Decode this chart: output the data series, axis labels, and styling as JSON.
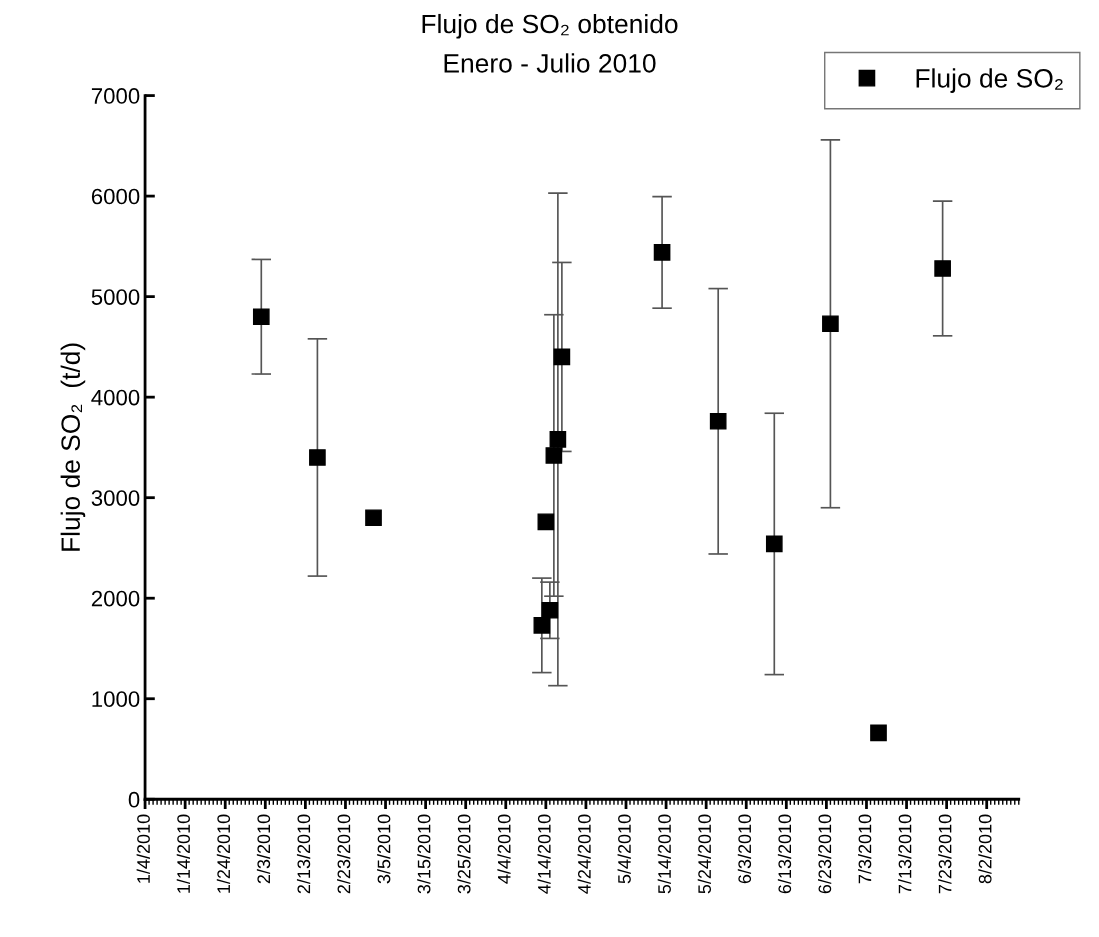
{
  "chart_data": {
    "type": "scatter",
    "title": "Flujo de SO₂ obtenido",
    "subtitle": "Enero - Julio 2010",
    "ylabel": "Flujo de SO₂  (t/d)",
    "x": [
      "2010-02-02",
      "2010-02-16",
      "2010-03-02",
      "2010-04-13",
      "2010-04-14",
      "2010-04-15",
      "2010-04-16",
      "2010-04-17",
      "2010-04-18",
      "2010-05-13",
      "2010-05-27",
      "2010-06-10",
      "2010-06-24",
      "2010-07-06",
      "2010-07-22"
    ],
    "series": [
      {
        "name": "Flujo de SO₂",
        "color": "#000000",
        "values": [
          4800,
          3400,
          2800,
          1730,
          2760,
          1880,
          3420,
          3580,
          4400,
          5440,
          3760,
          2540,
          4730,
          660,
          5280
        ],
        "errors": [
          570,
          1180,
          null,
          470,
          null,
          280,
          1400,
          2450,
          940,
          555,
          1320,
          1300,
          1830,
          null,
          670
        ]
      }
    ],
    "marker": "square",
    "legend": "top right",
    "grid": false,
    "xlim": [
      "2010-01-04",
      "2010-08-10"
    ],
    "xticks": [
      {
        "value": "2010-01-04",
        "label": "1/4/2010"
      },
      {
        "value": "2010-01-14",
        "label": "1/14/2010"
      },
      {
        "value": "2010-01-24",
        "label": "1/24/2010"
      },
      {
        "value": "2010-02-03",
        "label": "2/3/2010"
      },
      {
        "value": "2010-02-13",
        "label": "2/13/2010"
      },
      {
        "value": "2010-02-23",
        "label": "2/23/2010"
      },
      {
        "value": "2010-03-05",
        "label": "3/5/2010"
      },
      {
        "value": "2010-03-15",
        "label": "3/15/2010"
      },
      {
        "value": "2010-03-25",
        "label": "3/25/2010"
      },
      {
        "value": "2010-04-04",
        "label": "4/4/2010"
      },
      {
        "value": "2010-04-14",
        "label": "4/14/2010"
      },
      {
        "value": "2010-04-24",
        "label": "4/24/2010"
      },
      {
        "value": "2010-05-04",
        "label": "5/4/2010"
      },
      {
        "value": "2010-05-14",
        "label": "5/14/2010"
      },
      {
        "value": "2010-05-24",
        "label": "5/24/2010"
      },
      {
        "value": "2010-06-03",
        "label": "6/3/2010"
      },
      {
        "value": "2010-06-13",
        "label": "6/13/2010"
      },
      {
        "value": "2010-06-23",
        "label": "6/23/2010"
      },
      {
        "value": "2010-07-03",
        "label": "7/3/2010"
      },
      {
        "value": "2010-07-13",
        "label": "7/13/2010"
      },
      {
        "value": "2010-07-23",
        "label": "7/23/2010"
      },
      {
        "value": "2010-08-02",
        "label": "8/2/2010"
      }
    ],
    "ylim": [
      0,
      7000
    ],
    "yticks": [
      0,
      1000,
      2000,
      3000,
      4000,
      5000,
      6000,
      7000
    ]
  }
}
